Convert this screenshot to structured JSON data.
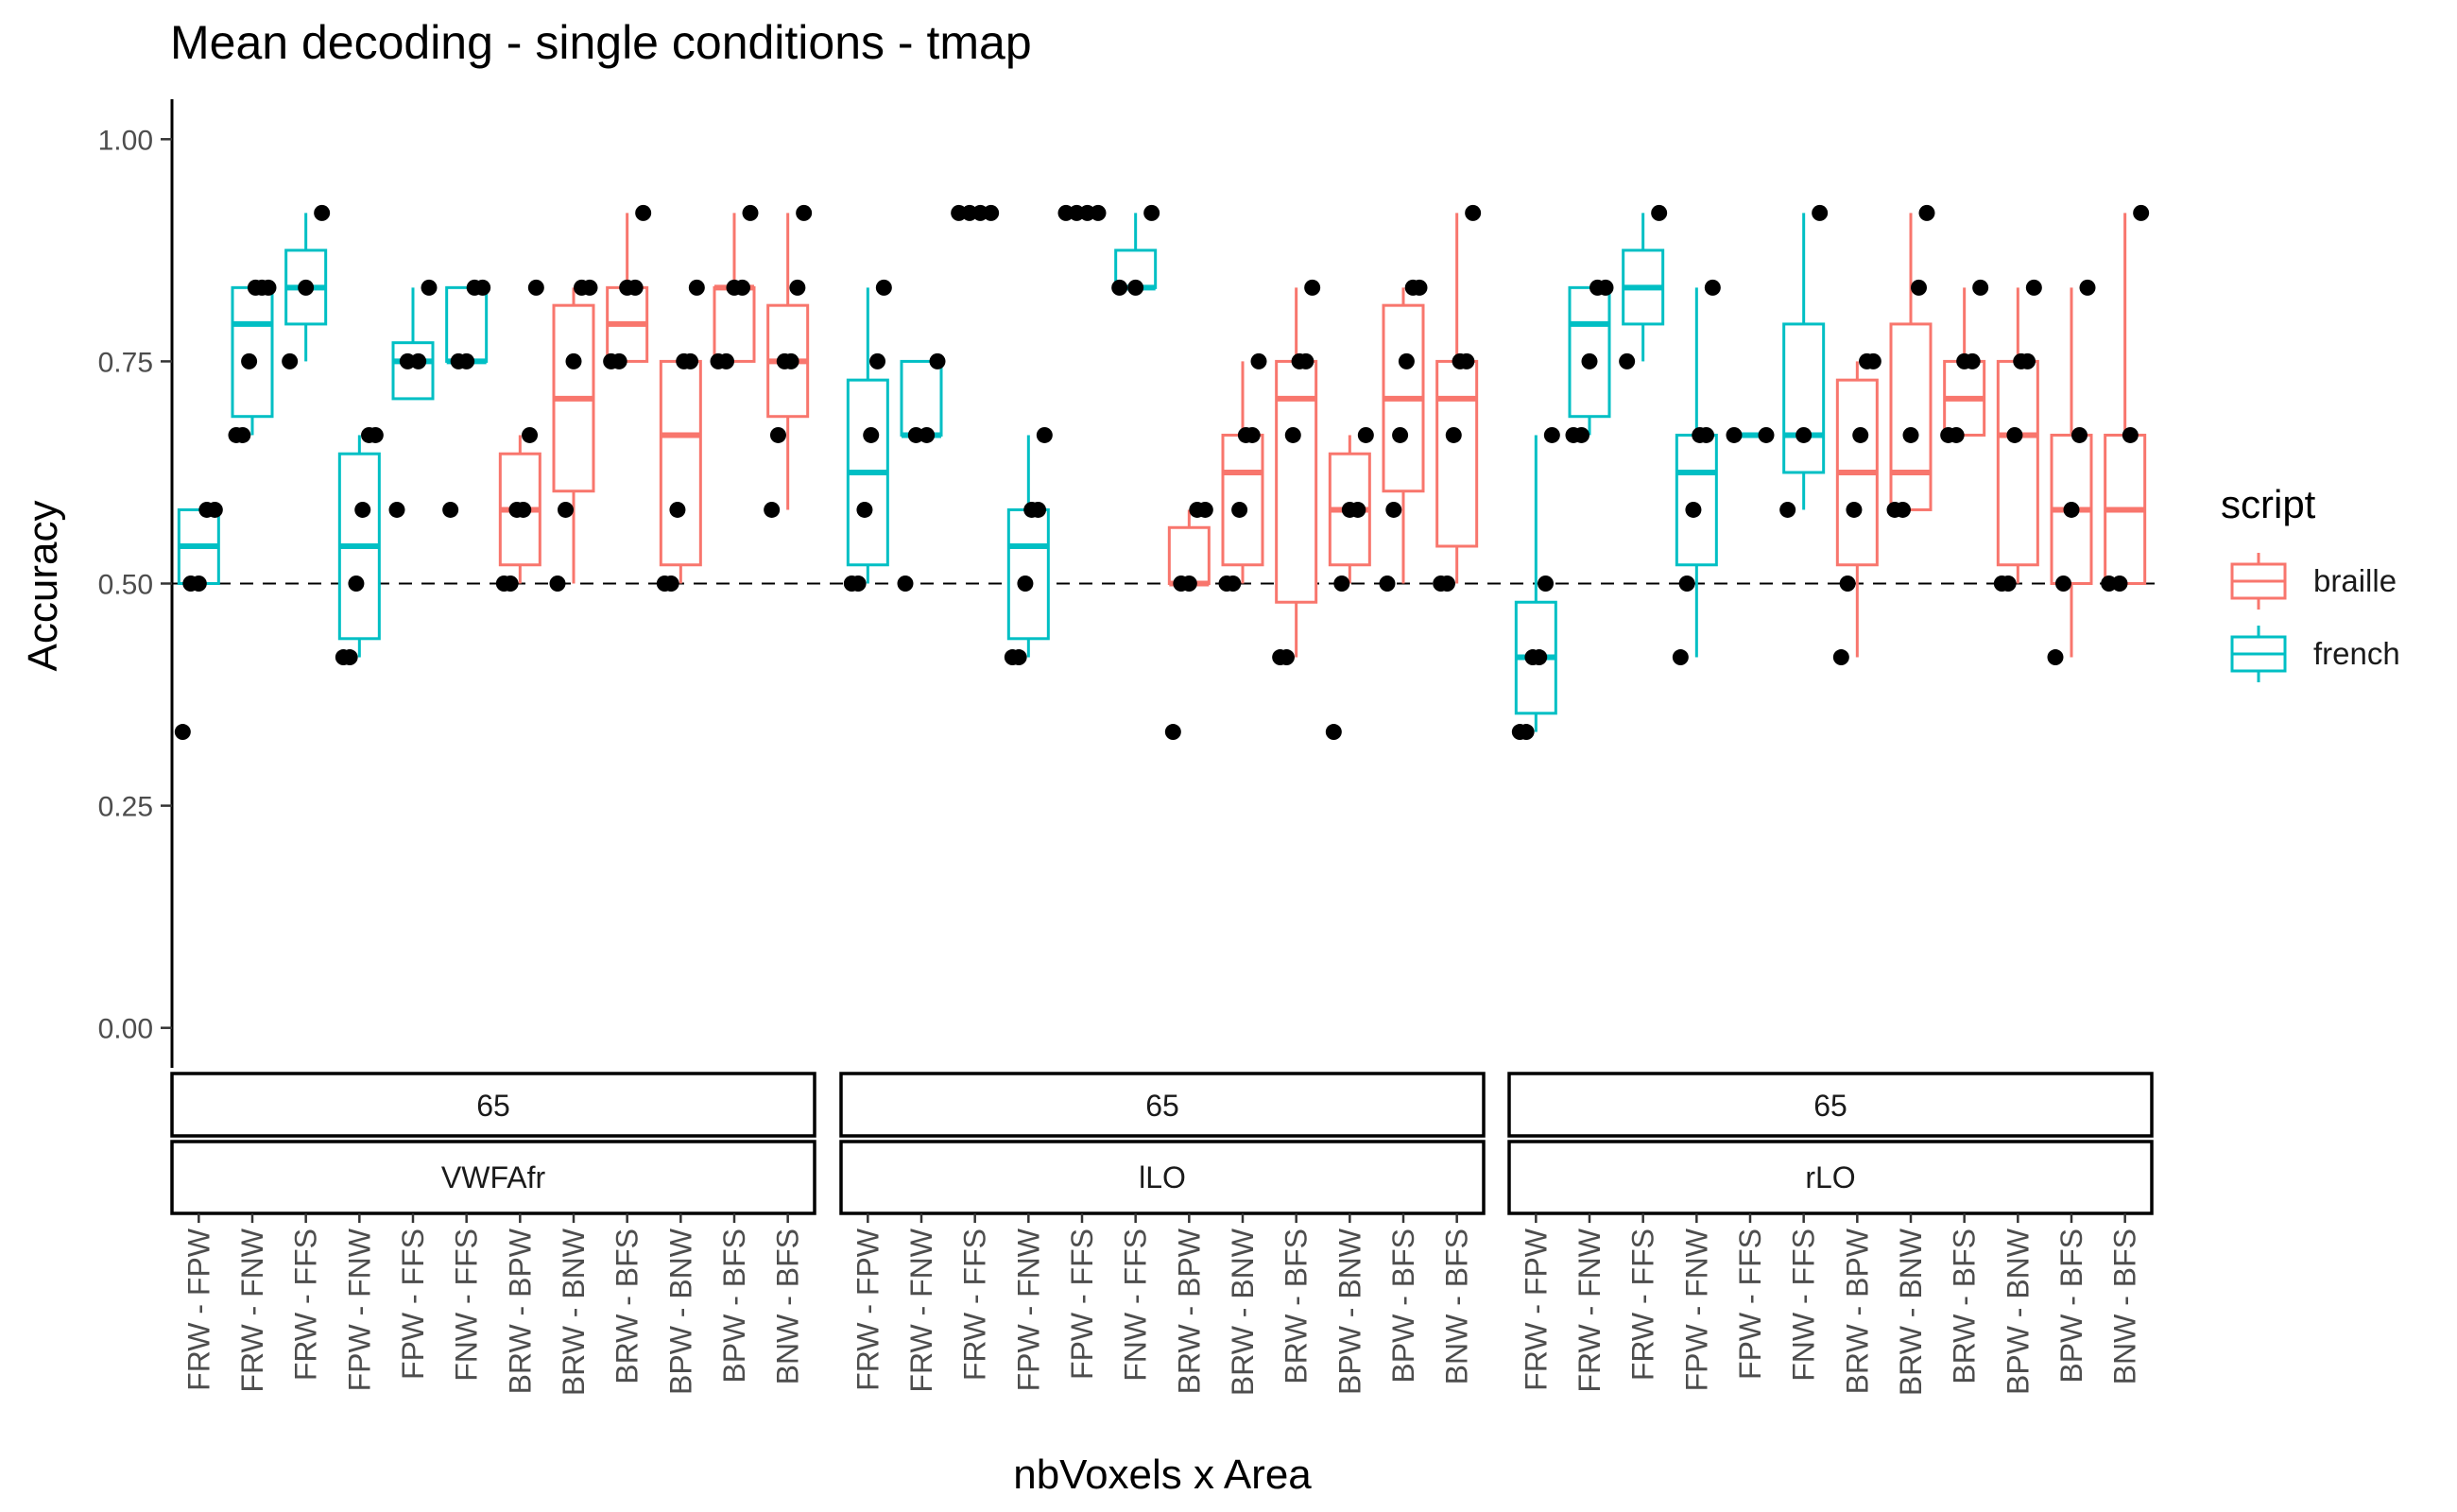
{
  "chart_data": {
    "type": "boxplot",
    "title": "Mean decoding - single conditions - tmap",
    "xlabel": "nbVoxels x Area",
    "ylabel": "Accuracy",
    "ylim": [
      -0.045,
      1.045
    ],
    "yticks": [
      0.0,
      0.25,
      0.5,
      0.75,
      1.0
    ],
    "ytick_labels": [
      "0.00",
      "0.25",
      "0.50",
      "0.75",
      "1.00"
    ],
    "reference_line": 0.5,
    "legend": {
      "title": "script",
      "position": "right",
      "entries": [
        {
          "name": "braille",
          "color": "#F8766D"
        },
        {
          "name": "french",
          "color": "#00BFC4"
        }
      ]
    },
    "categories": [
      "FRW - FPW",
      "FRW - FNW",
      "FRW - FFS",
      "FPW - FNW",
      "FPW - FFS",
      "FNW - FFS",
      "BRW - BPW",
      "BRW - BNW",
      "BRW - BFS",
      "BPW - BNW",
      "BPW - BFS",
      "BNW - BFS"
    ],
    "scripts": [
      "french",
      "french",
      "french",
      "french",
      "french",
      "french",
      "braille",
      "braille",
      "braille",
      "braille",
      "braille",
      "braille"
    ],
    "panels": [
      {
        "strip_top": "65",
        "strip_bottom": "VWFAfr",
        "boxes": [
          {
            "wlo": 0.5,
            "q1": 0.5,
            "med": 0.542,
            "q3": 0.583,
            "whi": 0.583,
            "points": [
              0.333,
              0.5,
              0.5,
              0.583,
              0.583
            ]
          },
          {
            "wlo": 0.667,
            "q1": 0.688,
            "med": 0.792,
            "q3": 0.833,
            "whi": 0.833,
            "points": [
              0.667,
              0.667,
              0.75,
              0.833,
              0.833,
              0.833
            ]
          },
          {
            "wlo": 0.75,
            "q1": 0.792,
            "med": 0.833,
            "q3": 0.875,
            "whi": 0.917,
            "points": [
              0.75,
              0.833,
              0.917
            ]
          },
          {
            "wlo": 0.417,
            "q1": 0.438,
            "med": 0.542,
            "q3": 0.646,
            "whi": 0.667,
            "points": [
              0.417,
              0.417,
              0.5,
              0.583,
              0.667,
              0.667
            ]
          },
          {
            "wlo": 0.708,
            "q1": 0.708,
            "med": 0.75,
            "q3": 0.771,
            "whi": 0.833,
            "points": [
              0.583,
              0.75,
              0.75,
              0.833
            ]
          },
          {
            "wlo": 0.75,
            "q1": 0.75,
            "med": 0.75,
            "q3": 0.833,
            "whi": 0.833,
            "points": [
              0.583,
              0.75,
              0.75,
              0.833,
              0.833
            ]
          },
          {
            "wlo": 0.5,
            "q1": 0.521,
            "med": 0.583,
            "q3": 0.646,
            "whi": 0.667,
            "points": [
              0.5,
              0.5,
              0.583,
              0.583,
              0.667,
              0.833
            ]
          },
          {
            "wlo": 0.5,
            "q1": 0.604,
            "med": 0.708,
            "q3": 0.813,
            "whi": 0.833,
            "points": [
              0.5,
              0.583,
              0.75,
              0.833,
              0.833
            ]
          },
          {
            "wlo": 0.75,
            "q1": 0.75,
            "med": 0.792,
            "q3": 0.833,
            "whi": 0.917,
            "points": [
              0.75,
              0.75,
              0.833,
              0.833,
              0.917
            ]
          },
          {
            "wlo": 0.5,
            "q1": 0.521,
            "med": 0.667,
            "q3": 0.75,
            "whi": 0.75,
            "points": [
              0.5,
              0.5,
              0.583,
              0.75,
              0.75,
              0.833
            ]
          },
          {
            "wlo": 0.75,
            "q1": 0.75,
            "med": 0.833,
            "q3": 0.833,
            "whi": 0.917,
            "points": [
              0.75,
              0.75,
              0.833,
              0.833,
              0.917
            ]
          },
          {
            "wlo": 0.583,
            "q1": 0.688,
            "med": 0.75,
            "q3": 0.813,
            "whi": 0.917,
            "points": [
              0.583,
              0.667,
              0.75,
              0.75,
              0.833,
              0.917
            ]
          }
        ]
      },
      {
        "strip_top": "65",
        "strip_bottom": "lLO",
        "boxes": [
          {
            "wlo": 0.5,
            "q1": 0.521,
            "med": 0.625,
            "q3": 0.729,
            "whi": 0.833,
            "points": [
              0.5,
              0.5,
              0.583,
              0.667,
              0.75,
              0.833
            ]
          },
          {
            "wlo": 0.667,
            "q1": 0.667,
            "med": 0.667,
            "q3": 0.75,
            "whi": 0.75,
            "points": [
              0.5,
              0.667,
              0.667,
              0.75
            ]
          },
          {
            "wlo": 0.917,
            "q1": 0.917,
            "med": 0.917,
            "q3": 0.917,
            "whi": 0.917,
            "points": [
              0.917,
              0.917,
              0.917,
              0.917
            ]
          },
          {
            "wlo": 0.417,
            "q1": 0.438,
            "med": 0.542,
            "q3": 0.583,
            "whi": 0.667,
            "points": [
              0.417,
              0.417,
              0.5,
              0.583,
              0.583,
              0.667
            ]
          },
          {
            "wlo": 0.917,
            "q1": 0.917,
            "med": 0.917,
            "q3": 0.917,
            "whi": 0.917,
            "points": [
              0.917,
              0.917,
              0.917,
              0.917
            ]
          },
          {
            "wlo": 0.833,
            "q1": 0.833,
            "med": 0.833,
            "q3": 0.875,
            "whi": 0.917,
            "points": [
              0.833,
              0.833,
              0.917
            ]
          },
          {
            "wlo": 0.5,
            "q1": 0.5,
            "med": 0.5,
            "q3": 0.563,
            "whi": 0.583,
            "points": [
              0.333,
              0.5,
              0.5,
              0.583,
              0.583
            ]
          },
          {
            "wlo": 0.5,
            "q1": 0.521,
            "med": 0.625,
            "q3": 0.667,
            "whi": 0.75,
            "points": [
              0.5,
              0.5,
              0.583,
              0.667,
              0.667,
              0.75
            ]
          },
          {
            "wlo": 0.417,
            "q1": 0.479,
            "med": 0.708,
            "q3": 0.75,
            "whi": 0.833,
            "points": [
              0.417,
              0.417,
              0.667,
              0.75,
              0.75,
              0.833
            ]
          },
          {
            "wlo": 0.5,
            "q1": 0.521,
            "med": 0.583,
            "q3": 0.646,
            "whi": 0.667,
            "points": [
              0.333,
              0.5,
              0.583,
              0.583,
              0.667
            ]
          },
          {
            "wlo": 0.5,
            "q1": 0.604,
            "med": 0.708,
            "q3": 0.813,
            "whi": 0.833,
            "points": [
              0.5,
              0.583,
              0.667,
              0.75,
              0.833,
              0.833
            ]
          },
          {
            "wlo": 0.5,
            "q1": 0.542,
            "med": 0.708,
            "q3": 0.75,
            "whi": 0.917,
            "points": [
              0.5,
              0.5,
              0.667,
              0.75,
              0.75,
              0.917
            ]
          }
        ]
      },
      {
        "strip_top": "65",
        "strip_bottom": "rLO",
        "boxes": [
          {
            "wlo": 0.333,
            "q1": 0.354,
            "med": 0.417,
            "q3": 0.479,
            "whi": 0.667,
            "points": [
              0.333,
              0.333,
              0.417,
              0.417,
              0.5,
              0.667
            ]
          },
          {
            "wlo": 0.667,
            "q1": 0.688,
            "med": 0.792,
            "q3": 0.833,
            "whi": 0.833,
            "points": [
              0.667,
              0.667,
              0.75,
              0.833,
              0.833
            ]
          },
          {
            "wlo": 0.75,
            "q1": 0.792,
            "med": 0.833,
            "q3": 0.875,
            "whi": 0.917,
            "points": [
              0.75,
              0.917
            ]
          },
          {
            "wlo": 0.417,
            "q1": 0.521,
            "med": 0.625,
            "q3": 0.667,
            "whi": 0.833,
            "points": [
              0.417,
              0.5,
              0.583,
              0.667,
              0.667,
              0.833
            ]
          },
          {
            "wlo": 0.667,
            "q1": 0.667,
            "med": 0.667,
            "q3": 0.667,
            "whi": 0.667,
            "points": [
              0.667,
              0.667
            ]
          },
          {
            "wlo": 0.583,
            "q1": 0.625,
            "med": 0.667,
            "q3": 0.792,
            "whi": 0.917,
            "points": [
              0.583,
              0.667,
              0.917
            ]
          },
          {
            "wlo": 0.417,
            "q1": 0.521,
            "med": 0.625,
            "q3": 0.729,
            "whi": 0.75,
            "points": [
              0.417,
              0.5,
              0.583,
              0.667,
              0.75,
              0.75
            ]
          },
          {
            "wlo": 0.583,
            "q1": 0.583,
            "med": 0.625,
            "q3": 0.792,
            "whi": 0.917,
            "points": [
              0.583,
              0.583,
              0.667,
              0.833,
              0.917
            ]
          },
          {
            "wlo": 0.667,
            "q1": 0.667,
            "med": 0.708,
            "q3": 0.75,
            "whi": 0.833,
            "points": [
              0.667,
              0.667,
              0.75,
              0.75,
              0.833
            ]
          },
          {
            "wlo": 0.5,
            "q1": 0.521,
            "med": 0.667,
            "q3": 0.75,
            "whi": 0.833,
            "points": [
              0.5,
              0.5,
              0.667,
              0.75,
              0.75,
              0.833
            ]
          },
          {
            "wlo": 0.417,
            "q1": 0.5,
            "med": 0.583,
            "q3": 0.667,
            "whi": 0.833,
            "points": [
              0.417,
              0.5,
              0.583,
              0.667,
              0.833
            ]
          },
          {
            "wlo": 0.5,
            "q1": 0.5,
            "med": 0.583,
            "q3": 0.667,
            "whi": 0.917,
            "points": [
              0.5,
              0.5,
              0.667,
              0.917
            ]
          }
        ]
      }
    ]
  }
}
